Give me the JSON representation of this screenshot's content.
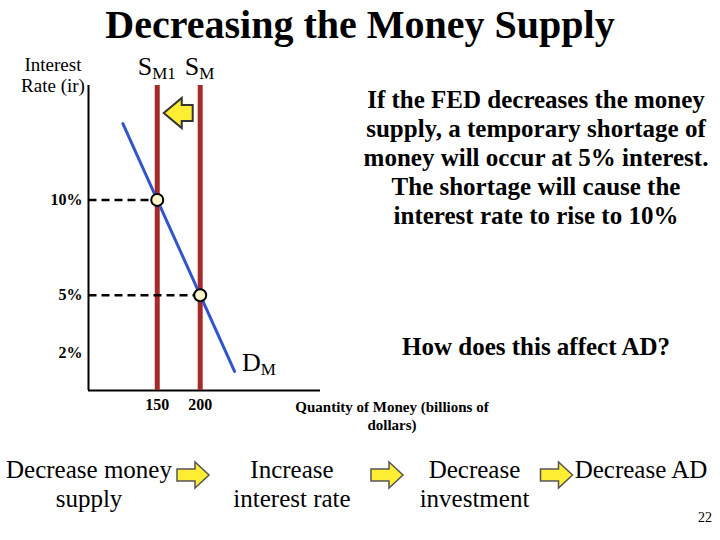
{
  "chart_data": {
    "type": "line",
    "title": "Decreasing the Money Supply",
    "xlabel": "Quantity of Money (billions of dollars)",
    "ylabel": "Interest Rate (ir)",
    "xlim": [
      70,
      340
    ],
    "ylim": [
      0,
      16
    ],
    "xticks": [
      150,
      200
    ],
    "yticks": [
      {
        "value": 2,
        "label": "2%"
      },
      {
        "value": 5,
        "label": "5%"
      },
      {
        "value": 10,
        "label": "10%"
      }
    ],
    "series": [
      {
        "name": "SM1",
        "color": "#a52a2a",
        "x": [
          150,
          150
        ],
        "values": [
          0,
          16
        ]
      },
      {
        "name": "SM",
        "color": "#a52a2a",
        "x": [
          200,
          200
        ],
        "values": [
          0,
          16
        ]
      },
      {
        "name": "DM",
        "color": "#3355cc",
        "x": [
          110,
          240
        ],
        "values": [
          14,
          1
        ]
      }
    ],
    "points": {
      "x": [
        150,
        200
      ],
      "values": [
        10,
        5
      ]
    },
    "annotations": [
      "If the FED decreases the money supply, a temporary shortage of money will occur at 5% interest. The shortage will cause the interest rate to rise to 10%",
      "How does this affect AD?"
    ],
    "flow": [
      "Decrease money supply",
      "Increase interest rate",
      "Decrease investment",
      "Decrease AD"
    ],
    "page_number": "22"
  }
}
